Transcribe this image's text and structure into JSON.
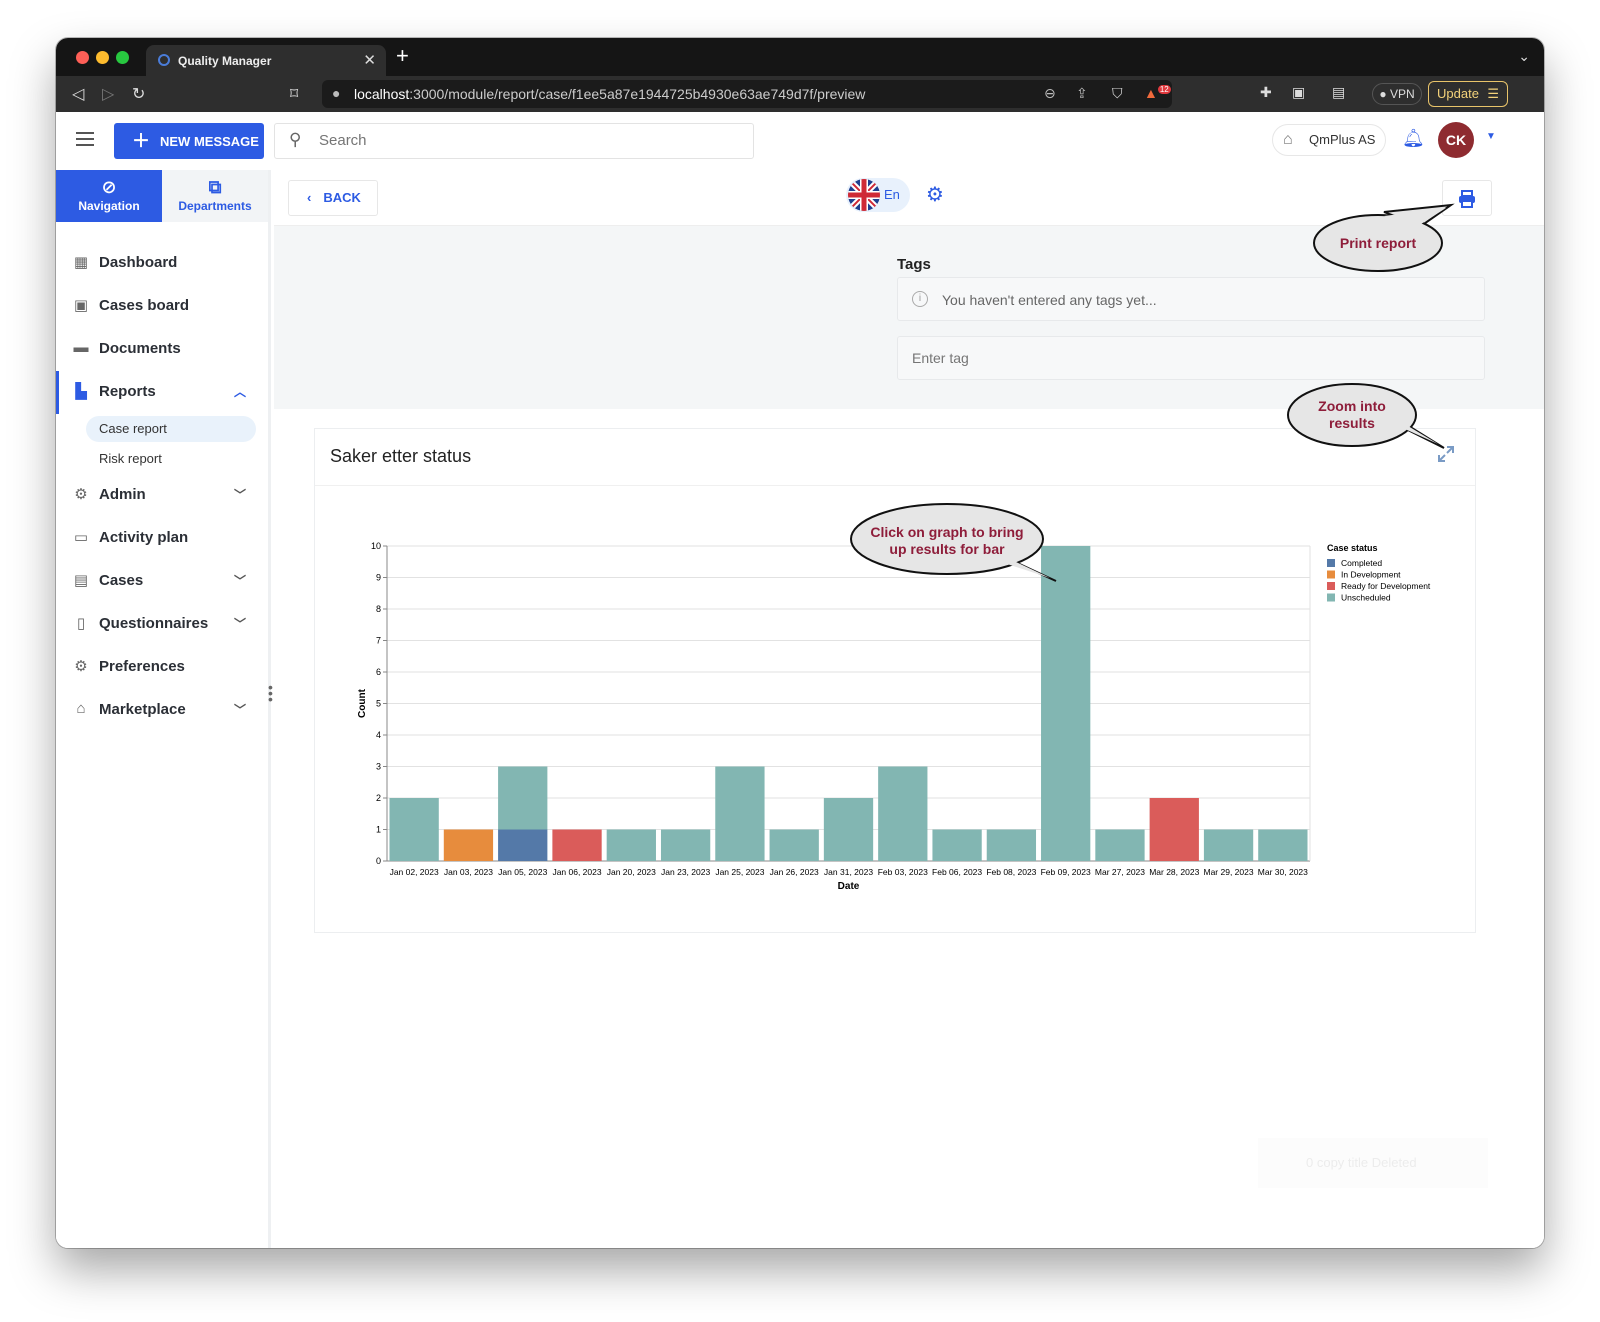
{
  "browser": {
    "tab_title": "Quality Manager",
    "url_host": "localhost",
    "url_path": ":3000/module/report/case/f1ee5a87e1944725b4930e63ae749d7f/preview",
    "vpn_label": "VPN",
    "update_label": "Update",
    "badge_count": "12"
  },
  "header": {
    "new_message_label": "NEW MESSAGE",
    "search_placeholder": "Search",
    "company_name": "QmPlus AS",
    "avatar_initials": "CK"
  },
  "sidebar": {
    "tabs": [
      {
        "label": "Navigation",
        "icon": "compass-icon"
      },
      {
        "label": "Departments",
        "icon": "org-chart-icon"
      }
    ],
    "items": [
      {
        "label": "Dashboard",
        "icon": "dashboard-icon"
      },
      {
        "label": "Cases board",
        "icon": "board-icon"
      },
      {
        "label": "Documents",
        "icon": "folder-icon"
      },
      {
        "label": "Reports",
        "icon": "bar-chart-icon"
      },
      {
        "label": "Admin",
        "icon": "admin-gear-icon"
      },
      {
        "label": "Activity plan",
        "icon": "calendar-icon"
      },
      {
        "label": "Cases",
        "icon": "cases-icon"
      },
      {
        "label": "Questionnaires",
        "icon": "clipboard-icon"
      },
      {
        "label": "Preferences",
        "icon": "gear-icon"
      },
      {
        "label": "Marketplace",
        "icon": "store-icon"
      }
    ],
    "reports_sub": [
      {
        "label": "Case report",
        "selected": true
      },
      {
        "label": "Risk report",
        "selected": false
      }
    ]
  },
  "toolbar": {
    "back_label": "BACK",
    "language": "En"
  },
  "tags": {
    "label": "Tags",
    "empty_text": "You haven't entered any tags yet...",
    "input_placeholder": "Enter tag"
  },
  "chart_card": {
    "title": "Saker etter status"
  },
  "annotations": {
    "print": "Print report",
    "zoom_line1": "Zoom into",
    "zoom_line2": "results",
    "click_line1": "Click on graph to bring",
    "click_line2": "up results for bar"
  },
  "snackbar_text": "0 copy title Deleted",
  "colors": {
    "accent": "#2d5be3",
    "completed": "#5479a8",
    "in_development": "#e78c3d",
    "ready_for_development": "#da5c5a",
    "unscheduled": "#82b6b2"
  },
  "chart_data": {
    "type": "bar",
    "stacked": true,
    "title": "",
    "xlabel": "Date",
    "ylabel": "Count",
    "ylim": [
      0,
      10
    ],
    "yticks": [
      0,
      1,
      2,
      3,
      4,
      5,
      6,
      7,
      8,
      9,
      10
    ],
    "legend_title": "Case status",
    "legend_position": "right",
    "grid": true,
    "categories": [
      "Jan 02, 2023",
      "Jan 03, 2023",
      "Jan 05, 2023",
      "Jan 06, 2023",
      "Jan 20, 2023",
      "Jan 23, 2023",
      "Jan 25, 2023",
      "Jan 26, 2023",
      "Jan 31, 2023",
      "Feb 03, 2023",
      "Feb 06, 2023",
      "Feb 08, 2023",
      "Feb 09, 2023",
      "Mar 27, 2023",
      "Mar 28, 2023",
      "Mar 29, 2023",
      "Mar 30, 2023"
    ],
    "series": [
      {
        "name": "Completed",
        "color": "#5479a8",
        "values": [
          0,
          0,
          1,
          0,
          0,
          0,
          0,
          0,
          0,
          0,
          0,
          0,
          0,
          0,
          0,
          0,
          0
        ]
      },
      {
        "name": "In Development",
        "color": "#e78c3d",
        "values": [
          0,
          1,
          0,
          0,
          0,
          0,
          0,
          0,
          0,
          0,
          0,
          0,
          0,
          0,
          0,
          0,
          0
        ]
      },
      {
        "name": "Ready for Development",
        "color": "#da5c5a",
        "values": [
          0,
          0,
          0,
          1,
          0,
          0,
          0,
          0,
          0,
          0,
          0,
          0,
          0,
          0,
          2,
          0,
          0
        ]
      },
      {
        "name": "Unscheduled",
        "color": "#82b6b2",
        "values": [
          2,
          0,
          2,
          0,
          1,
          1,
          3,
          1,
          2,
          3,
          1,
          1,
          10,
          1,
          0,
          1,
          1
        ]
      }
    ]
  }
}
